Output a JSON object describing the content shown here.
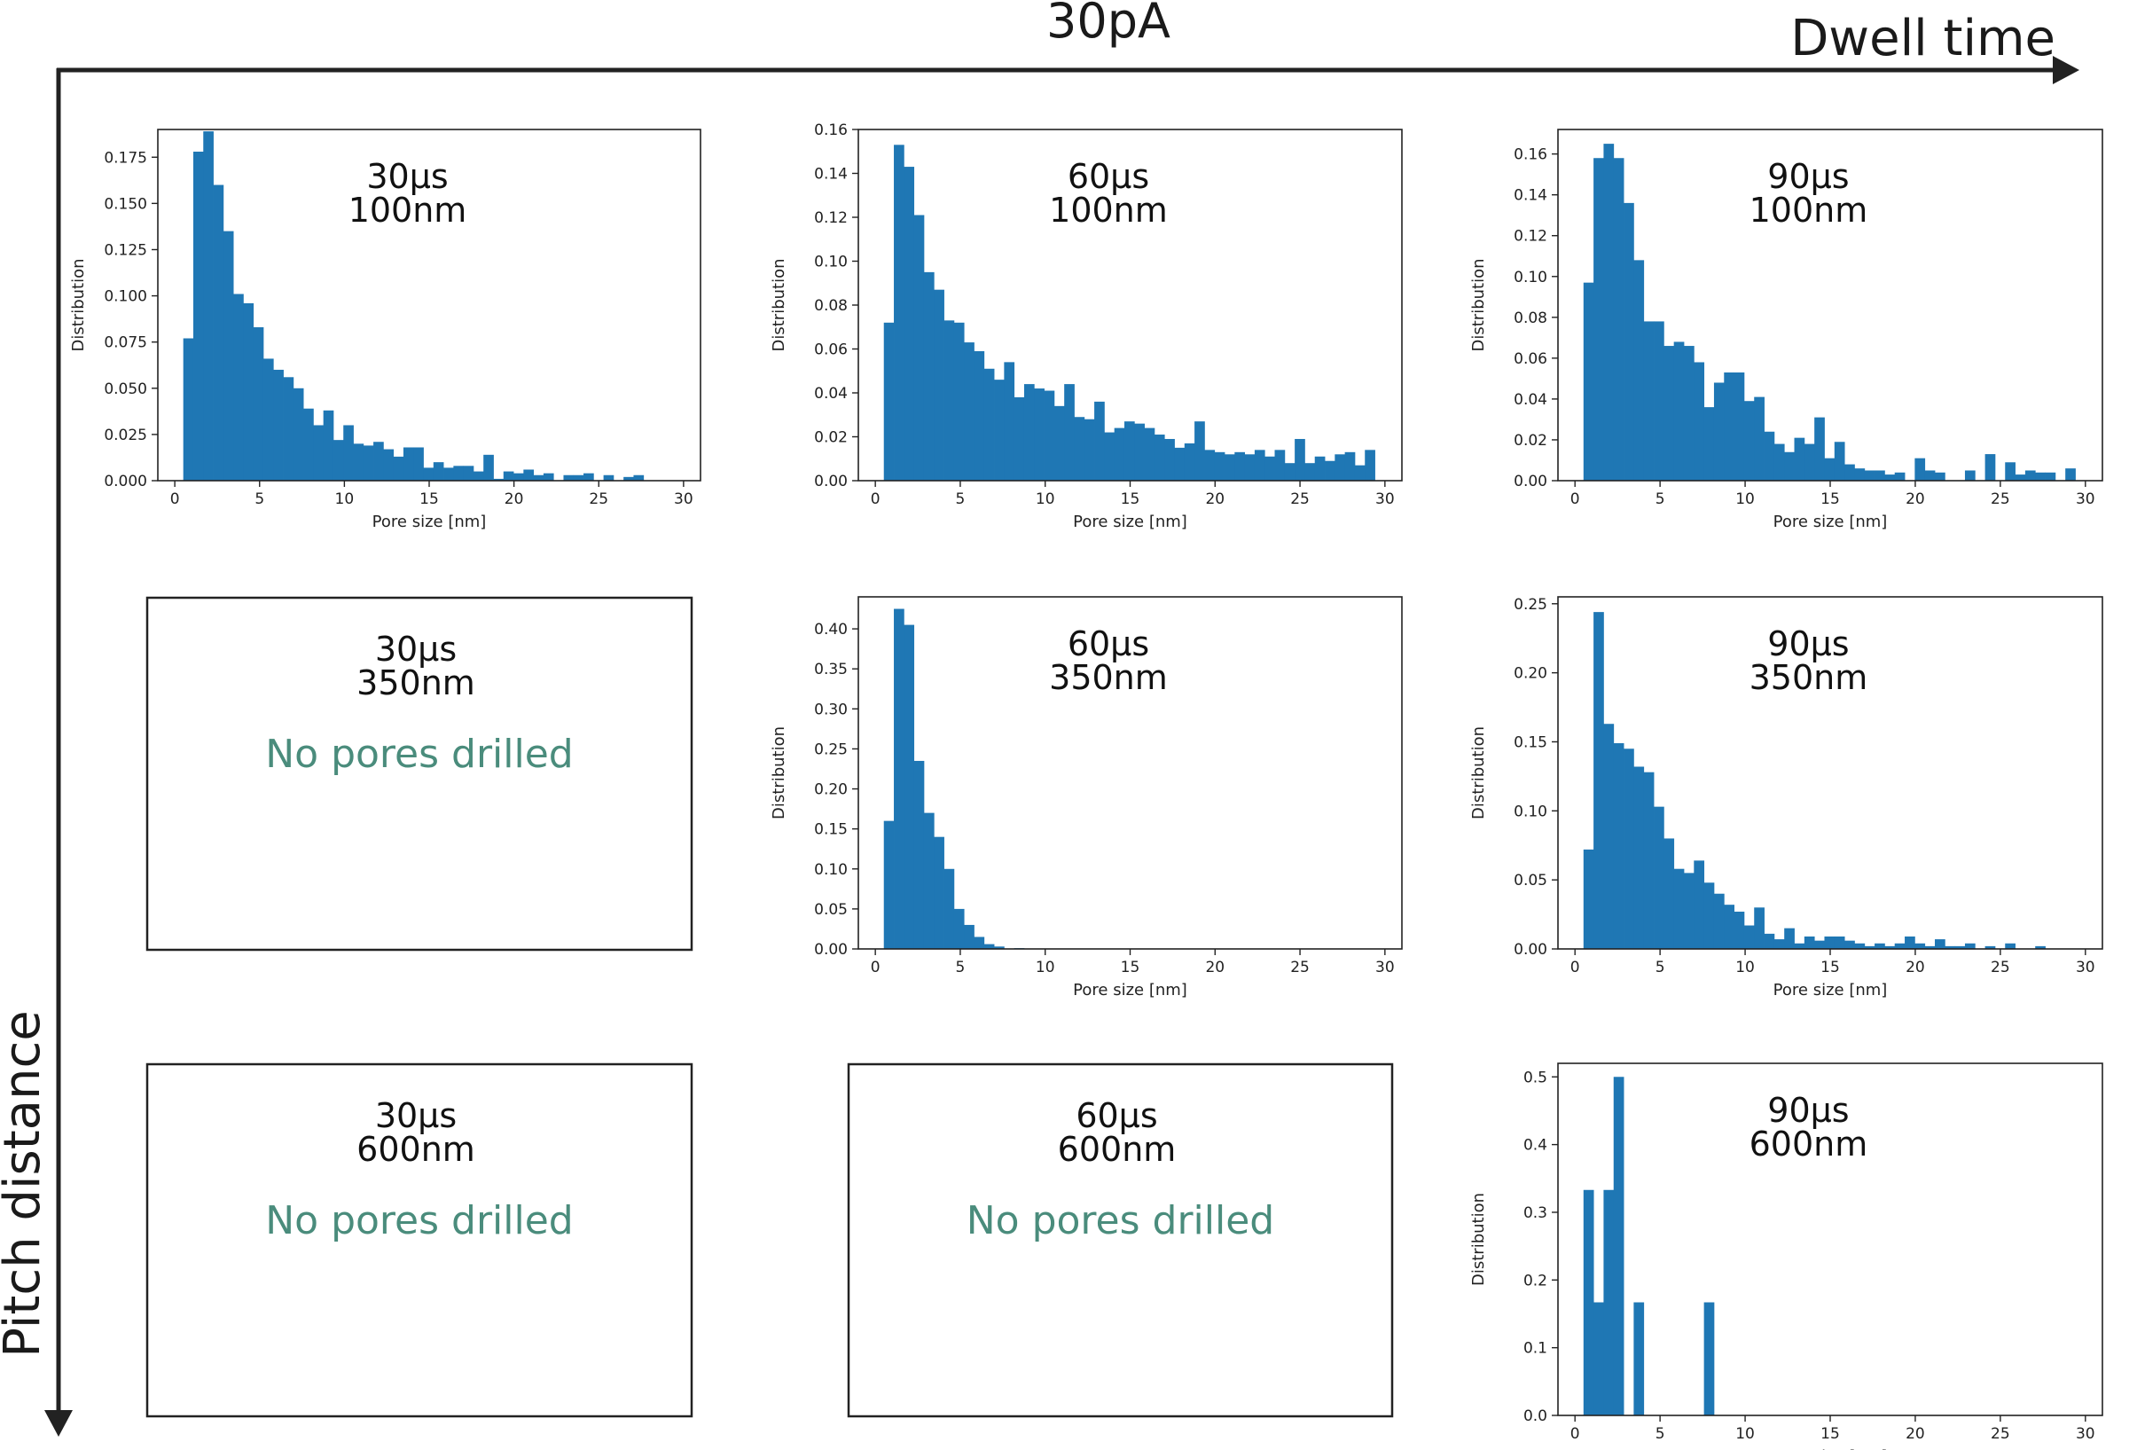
{
  "figure": {
    "title": "30pA",
    "x_axis_label": "Dwell time",
    "y_axis_label": "Pitch distance",
    "empty_message": "No pores drilled",
    "bar_color": "#1f77b4",
    "empty_text_color": "#4a8c7c"
  },
  "chart_data": [
    {
      "type": "bar",
      "row": 0,
      "col": 0,
      "label_line1": "30μs",
      "label_line2": "100nm",
      "xlabel": "Pore size [nm]",
      "ylabel": "Distribution",
      "xlim": [
        -1,
        31
      ],
      "ylim": [
        0,
        0.19
      ],
      "xticks": [
        0,
        5,
        10,
        15,
        20,
        25,
        30
      ],
      "xtick_labels": [
        "0",
        "5",
        "10",
        "15",
        "20",
        "25",
        "30"
      ],
      "yticks": [
        0,
        0.025,
        0.05,
        0.075,
        0.1,
        0.125,
        0.15,
        0.175
      ],
      "ytick_labels": [
        "0.000",
        "0.025",
        "0.050",
        "0.075",
        "0.100",
        "0.125",
        "0.150",
        "0.175"
      ],
      "bin_start": 0.5,
      "bin_width": 0.59,
      "values": [
        0.077,
        0.178,
        0.189,
        0.16,
        0.135,
        0.101,
        0.096,
        0.083,
        0.066,
        0.06,
        0.056,
        0.05,
        0.039,
        0.03,
        0.038,
        0.022,
        0.03,
        0.02,
        0.019,
        0.021,
        0.017,
        0.013,
        0.018,
        0.018,
        0.007,
        0.01,
        0.007,
        0.008,
        0.008,
        0.005,
        0.014,
        0.001,
        0.005,
        0.004,
        0.006,
        0.003,
        0.004,
        0.0,
        0.003,
        0.003,
        0.004,
        0.0,
        0.003,
        0.0,
        0.002,
        0.003,
        0.0,
        0.0,
        0.0,
        0.0
      ]
    },
    {
      "type": "bar",
      "row": 0,
      "col": 1,
      "label_line1": "60μs",
      "label_line2": "100nm",
      "xlabel": "Pore size [nm]",
      "ylabel": "Distribution",
      "xlim": [
        -1,
        31
      ],
      "ylim": [
        0,
        0.16
      ],
      "xticks": [
        0,
        5,
        10,
        15,
        20,
        25,
        30
      ],
      "xtick_labels": [
        "0",
        "5",
        "10",
        "15",
        "20",
        "25",
        "30"
      ],
      "yticks": [
        0,
        0.02,
        0.04,
        0.06,
        0.08,
        0.1,
        0.12,
        0.14,
        0.16
      ],
      "ytick_labels": [
        "0.00",
        "0.02",
        "0.04",
        "0.06",
        "0.08",
        "0.10",
        "0.12",
        "0.14",
        "0.16"
      ],
      "bin_start": 0.5,
      "bin_width": 0.59,
      "values": [
        0.072,
        0.153,
        0.143,
        0.121,
        0.095,
        0.087,
        0.073,
        0.072,
        0.063,
        0.059,
        0.051,
        0.046,
        0.054,
        0.038,
        0.044,
        0.042,
        0.041,
        0.034,
        0.044,
        0.029,
        0.028,
        0.036,
        0.022,
        0.024,
        0.027,
        0.026,
        0.024,
        0.021,
        0.019,
        0.015,
        0.017,
        0.027,
        0.014,
        0.013,
        0.012,
        0.013,
        0.012,
        0.014,
        0.011,
        0.014,
        0.008,
        0.019,
        0.008,
        0.011,
        0.009,
        0.012,
        0.013,
        0.007,
        0.014,
        0.0
      ]
    },
    {
      "type": "bar",
      "row": 0,
      "col": 2,
      "label_line1": "90μs",
      "label_line2": "100nm",
      "xlabel": "Pore size [nm]",
      "ylabel": "Distribution",
      "xlim": [
        -1,
        31
      ],
      "ylim": [
        0,
        0.172
      ],
      "xticks": [
        0,
        5,
        10,
        15,
        20,
        25,
        30
      ],
      "xtick_labels": [
        "0",
        "5",
        "10",
        "15",
        "20",
        "25",
        "30"
      ],
      "yticks": [
        0,
        0.02,
        0.04,
        0.06,
        0.08,
        0.1,
        0.12,
        0.14,
        0.16
      ],
      "ytick_labels": [
        "0.00",
        "0.02",
        "0.04",
        "0.06",
        "0.08",
        "0.10",
        "0.12",
        "0.14",
        "0.16"
      ],
      "bin_start": 0.5,
      "bin_width": 0.59,
      "values": [
        0.097,
        0.158,
        0.165,
        0.158,
        0.136,
        0.108,
        0.078,
        0.078,
        0.066,
        0.068,
        0.066,
        0.058,
        0.036,
        0.048,
        0.053,
        0.053,
        0.039,
        0.041,
        0.024,
        0.018,
        0.014,
        0.021,
        0.018,
        0.031,
        0.011,
        0.019,
        0.008,
        0.006,
        0.005,
        0.005,
        0.003,
        0.004,
        0.0,
        0.011,
        0.005,
        0.004,
        0.0,
        0.0,
        0.005,
        0.0,
        0.013,
        0.0,
        0.009,
        0.003,
        0.005,
        0.004,
        0.004,
        0.0,
        0.006,
        0.0
      ]
    },
    {
      "type": "empty",
      "row": 1,
      "col": 0,
      "label_line1": "30μs",
      "label_line2": "350nm"
    },
    {
      "type": "bar",
      "row": 1,
      "col": 1,
      "label_line1": "60μs",
      "label_line2": "350nm",
      "xlabel": "Pore size [nm]",
      "ylabel": "Distribution",
      "xlim": [
        -1,
        31
      ],
      "ylim": [
        0,
        0.44
      ],
      "xticks": [
        0,
        5,
        10,
        15,
        20,
        25,
        30
      ],
      "xtick_labels": [
        "0",
        "5",
        "10",
        "15",
        "20",
        "25",
        "30"
      ],
      "yticks": [
        0,
        0.05,
        0.1,
        0.15,
        0.2,
        0.25,
        0.3,
        0.35,
        0.4
      ],
      "ytick_labels": [
        "0.00",
        "0.05",
        "0.10",
        "0.15",
        "0.20",
        "0.25",
        "0.30",
        "0.35",
        "0.40"
      ],
      "bin_start": 0.5,
      "bin_width": 0.59,
      "values": [
        0.16,
        0.425,
        0.405,
        0.235,
        0.17,
        0.14,
        0.1,
        0.05,
        0.03,
        0.015,
        0.006,
        0.003,
        0.0,
        0.001
      ]
    },
    {
      "type": "bar",
      "row": 1,
      "col": 2,
      "label_line1": "90μs",
      "label_line2": "350nm",
      "xlabel": "Pore size [nm]",
      "ylabel": "Distribution",
      "xlim": [
        -1,
        31
      ],
      "ylim": [
        0,
        0.255
      ],
      "xticks": [
        0,
        5,
        10,
        15,
        20,
        25,
        30
      ],
      "xtick_labels": [
        "0",
        "5",
        "10",
        "15",
        "20",
        "25",
        "30"
      ],
      "yticks": [
        0,
        0.05,
        0.1,
        0.15,
        0.2,
        0.25
      ],
      "ytick_labels": [
        "0.00",
        "0.05",
        "0.10",
        "0.15",
        "0.20",
        "0.25"
      ],
      "bin_start": 0.5,
      "bin_width": 0.59,
      "values": [
        0.072,
        0.244,
        0.163,
        0.149,
        0.145,
        0.132,
        0.128,
        0.103,
        0.08,
        0.058,
        0.055,
        0.064,
        0.048,
        0.04,
        0.032,
        0.027,
        0.017,
        0.03,
        0.011,
        0.007,
        0.015,
        0.004,
        0.009,
        0.006,
        0.009,
        0.009,
        0.006,
        0.004,
        0.002,
        0.004,
        0.002,
        0.004,
        0.009,
        0.004,
        0.002,
        0.007,
        0.002,
        0.002,
        0.004,
        0.0,
        0.002,
        0.0,
        0.004,
        0.0,
        0.0,
        0.002,
        0.0,
        0.0,
        0.0,
        0.0
      ]
    },
    {
      "type": "empty",
      "row": 2,
      "col": 0,
      "label_line1": "30μs",
      "label_line2": "600nm"
    },
    {
      "type": "empty",
      "row": 2,
      "col": 1,
      "label_line1": "60μs",
      "label_line2": "600nm"
    },
    {
      "type": "bar",
      "row": 2,
      "col": 2,
      "label_line1": "90μs",
      "label_line2": "600nm",
      "xlabel": "Pore size [nm]",
      "ylabel": "Distribution",
      "xlim": [
        -1,
        31
      ],
      "ylim": [
        0,
        0.52
      ],
      "xticks": [
        0,
        5,
        10,
        15,
        20,
        25,
        30
      ],
      "xtick_labels": [
        "0",
        "5",
        "10",
        "15",
        "20",
        "25",
        "30"
      ],
      "yticks": [
        0,
        0.1,
        0.2,
        0.3,
        0.4,
        0.5
      ],
      "ytick_labels": [
        "0.0",
        "0.1",
        "0.2",
        "0.3",
        "0.4",
        "0.5"
      ],
      "bin_start": 0.5,
      "bin_width": 0.59,
      "values": [
        0.333,
        0.167,
        0.333,
        0.5,
        0.0,
        0.167,
        0.0,
        0.0,
        0.0,
        0.0,
        0.0,
        0.0,
        0.167
      ]
    }
  ]
}
